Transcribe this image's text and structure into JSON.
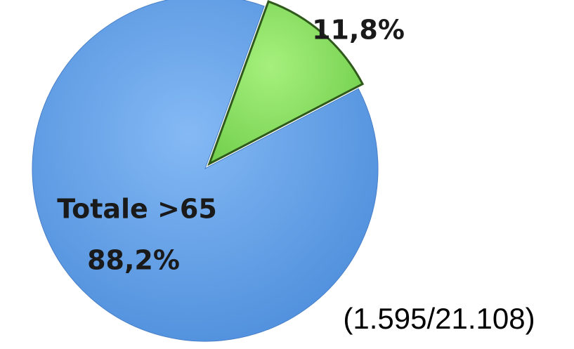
{
  "chart_data": {
    "type": "pie",
    "categories": [
      "Totale >65",
      null
    ],
    "values": [
      88.2,
      11.8
    ],
    "value_labels": [
      "88,2%",
      "11,8%"
    ],
    "colors": [
      "#6ea8ee",
      "#8fe46a"
    ],
    "annotation": "(1.595/21.108)"
  }
}
